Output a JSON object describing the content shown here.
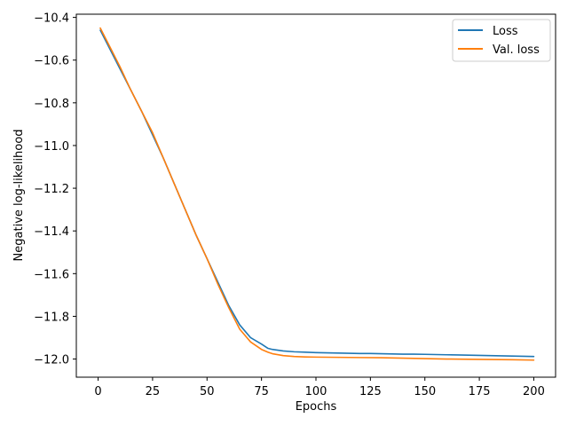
{
  "chart_data": {
    "type": "line",
    "title": "",
    "xlabel": "Epochs",
    "ylabel": "Negative log-likelihood",
    "xlim": [
      -10,
      210
    ],
    "ylim": [
      -12.085,
      -10.385
    ],
    "xticks": [
      0,
      25,
      50,
      75,
      100,
      125,
      150,
      175,
      200
    ],
    "xtick_labels": [
      "0",
      "25",
      "50",
      "75",
      "100",
      "125",
      "150",
      "175",
      "200"
    ],
    "yticks": [
      -10.4,
      -10.6,
      -10.8,
      -11.0,
      -11.2,
      -11.4,
      -11.6,
      -11.8,
      -12.0
    ],
    "ytick_labels": [
      "−10.4",
      "−10.6",
      "−10.8",
      "−11.0",
      "−11.2",
      "−11.4",
      "−11.6",
      "−11.8",
      "−12.0"
    ],
    "grid": false,
    "legend_position": "top-right",
    "series": [
      {
        "name": "Loss",
        "color": "#1f77b4",
        "x": [
          1,
          5,
          10,
          15,
          20,
          25,
          30,
          35,
          40,
          45,
          50,
          55,
          60,
          65,
          70,
          75,
          78,
          80,
          85,
          90,
          95,
          100,
          105,
          110,
          115,
          120,
          125,
          130,
          135,
          140,
          145,
          150,
          155,
          160,
          165,
          170,
          175,
          180,
          185,
          190,
          195,
          200
        ],
        "y": [
          -10.46,
          -10.54,
          -10.64,
          -10.74,
          -10.84,
          -10.95,
          -11.06,
          -11.18,
          -11.3,
          -11.42,
          -11.53,
          -11.64,
          -11.75,
          -11.84,
          -11.9,
          -11.93,
          -11.95,
          -11.955,
          -11.962,
          -11.966,
          -11.968,
          -11.97,
          -11.971,
          -11.972,
          -11.973,
          -11.974,
          -11.974,
          -11.975,
          -11.976,
          -11.977,
          -11.977,
          -11.978,
          -11.979,
          -11.98,
          -11.981,
          -11.982,
          -11.983,
          -11.984,
          -11.985,
          -11.986,
          -11.987,
          -11.988
        ]
      },
      {
        "name": "Val. loss",
        "color": "#ff7f0e",
        "x": [
          1,
          5,
          10,
          15,
          20,
          25,
          30,
          35,
          40,
          45,
          50,
          55,
          60,
          65,
          70,
          75,
          78,
          80,
          85,
          90,
          95,
          100,
          110,
          120,
          130,
          140,
          150,
          160,
          170,
          180,
          190,
          200
        ],
        "y": [
          -10.45,
          -10.53,
          -10.63,
          -10.74,
          -10.84,
          -10.94,
          -11.06,
          -11.18,
          -11.3,
          -11.42,
          -11.53,
          -11.65,
          -11.76,
          -11.86,
          -11.92,
          -11.955,
          -11.968,
          -11.975,
          -11.984,
          -11.988,
          -11.99,
          -11.991,
          -11.992,
          -11.993,
          -11.994,
          -11.996,
          -11.998,
          -12.0,
          -12.001,
          -12.002,
          -12.003,
          -12.005
        ]
      }
    ]
  }
}
